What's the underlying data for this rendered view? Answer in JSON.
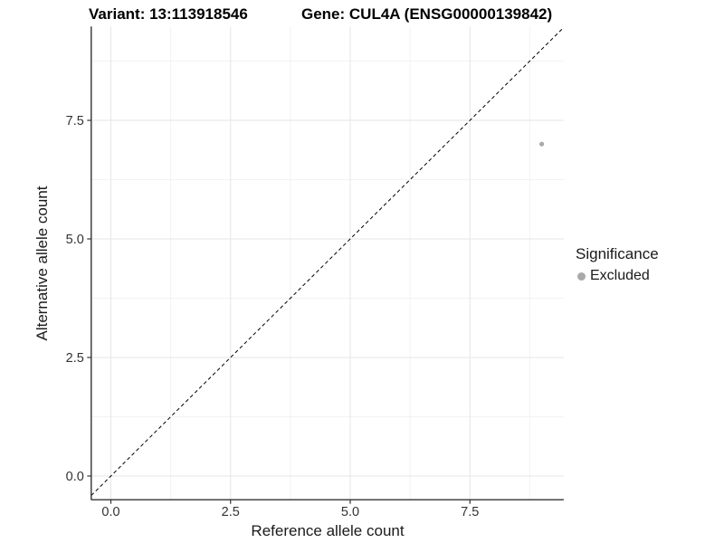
{
  "chart_data": {
    "type": "scatter",
    "title_left": "Variant: 13:113918546",
    "title_right": "Gene: CUL4A (ENSG00000139842)",
    "x": {
      "label": "Reference allele count",
      "ticks": [
        0,
        2.5,
        5,
        7.5
      ],
      "range": [
        -0.41,
        9.46
      ]
    },
    "y": {
      "label": "Alternative allele count",
      "ticks": [
        0,
        2.5,
        5,
        7.5
      ],
      "range": [
        -0.5,
        9.48
      ]
    },
    "points": [
      {
        "x": 9,
        "y": 7,
        "series": "Excluded"
      }
    ],
    "reference_line": {
      "type": "identity",
      "style": "dashed",
      "color": "#000000"
    },
    "grid": {
      "major": true,
      "minor": true
    },
    "legend": {
      "title": "Significance",
      "position": "right",
      "entries": [
        {
          "label": "Excluded",
          "color": "#a9a9a9"
        }
      ]
    }
  },
  "colors": {
    "background": "#ffffff",
    "grid_major": "#e6e6e6",
    "grid_minor": "#f2f2f2",
    "axis_line": "#333333",
    "tick_mark": "#333333",
    "tick_text": "#333333",
    "title_text": "#000000",
    "point": "#a9a9a9"
  }
}
